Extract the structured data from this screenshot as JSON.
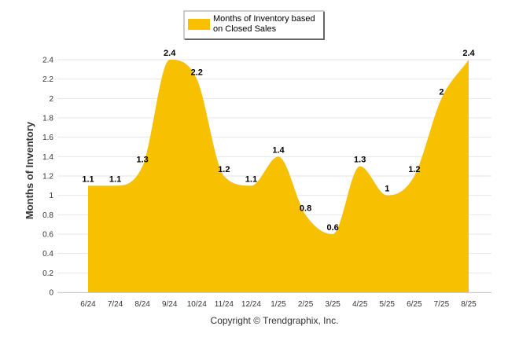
{
  "chart_data": {
    "type": "area",
    "categories": [
      "6/24",
      "7/24",
      "8/24",
      "9/24",
      "10/24",
      "11/24",
      "12/24",
      "1/25",
      "2/25",
      "3/25",
      "4/25",
      "5/25",
      "6/25",
      "7/25",
      "8/25"
    ],
    "series": [
      {
        "name": "Months of Inventory based on Closed Sales",
        "values": [
          1.1,
          1.1,
          1.3,
          2.4,
          2.2,
          1.2,
          1.1,
          1.4,
          0.8,
          0.6,
          1.3,
          1,
          1.2,
          2,
          2.4
        ],
        "labels": [
          "1.1",
          "1.1",
          "1.3",
          "2.4",
          "2.2",
          "1.2",
          "1.1",
          "1.4",
          "0.8",
          "0.6",
          "1.3",
          "1",
          "1.2",
          "2",
          "2.4"
        ]
      }
    ],
    "ylabel": "Months of Inventory",
    "ylim": [
      0,
      2.4
    ],
    "yticks": [
      "0",
      "0.2",
      "0.4",
      "0.6",
      "0.8",
      "1",
      "1.2",
      "1.4",
      "1.6",
      "1.8",
      "2",
      "2.2",
      "2.4"
    ],
    "grid": true,
    "legend_position": "top-center",
    "fill_color": "#F7C000",
    "footer": "Copyright © Trendgraphix, Inc."
  }
}
